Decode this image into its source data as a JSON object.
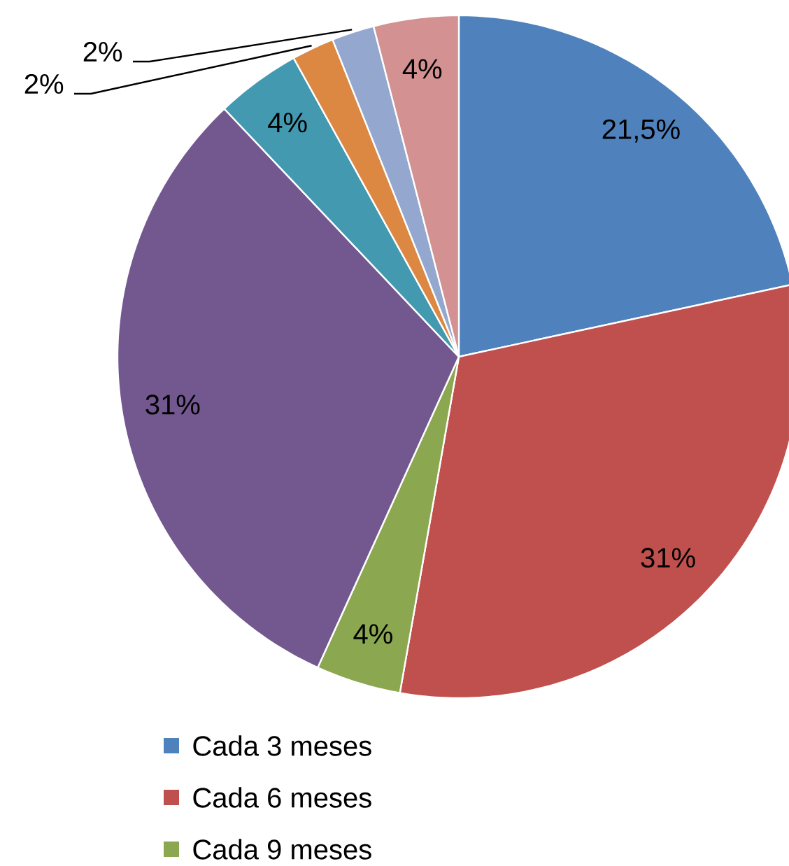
{
  "chart_data": {
    "type": "pie",
    "categories": [
      "Cada 3 meses",
      "Cada 6 meses",
      "Cada 9 meses",
      null,
      null,
      null,
      null,
      null
    ],
    "values": [
      21.5,
      31,
      4,
      31,
      4,
      2,
      2,
      4
    ],
    "colors": [
      "#4f81bd",
      "#c0504d",
      "#8ba74f",
      "#72588f",
      "#4399b0",
      "#dc8842",
      "#94a8cf",
      "#d39191"
    ],
    "value_labels": [
      "21,5%",
      "31%",
      "4%",
      "31%",
      "4%",
      "2%",
      "2%",
      "4%"
    ],
    "legend": "bottom"
  }
}
